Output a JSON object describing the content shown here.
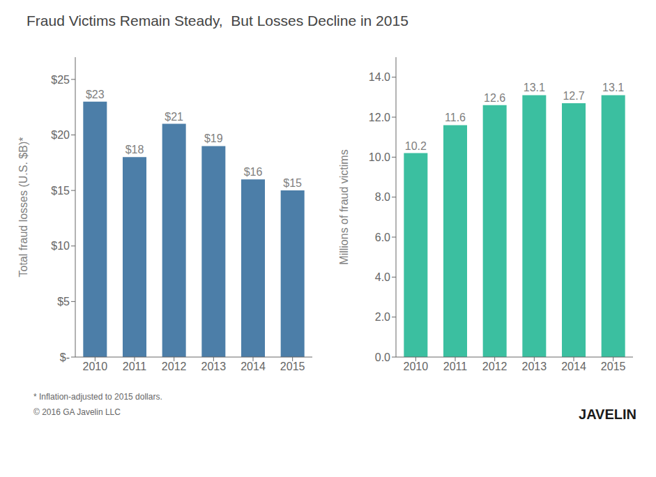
{
  "title": "Fraud Victims Remain Steady,  But Losses Decline in 2015",
  "annotations": [
    "* Inflation-adjusted to 2015 dollars.",
    "© 2016 GA Javelin LLC",
    "JAVELIN"
  ],
  "chart_data": [
    {
      "type": "bar",
      "categories": [
        "2010",
        "2011",
        "2012",
        "2013",
        "2014",
        "2015"
      ],
      "values": [
        23,
        18,
        21,
        19,
        16,
        15
      ],
      "value_labels": [
        "$23",
        "$18",
        "$21",
        "$19",
        "$16",
        "$15"
      ],
      "data_labels": true,
      "color": "#4c7ea8",
      "y_label": "Total fraud losses (U.S. $B)*",
      "ylim": [
        0,
        27
      ],
      "yticks": [
        {
          "value": 0,
          "label": "$-"
        },
        {
          "value": 5,
          "label": "$5"
        },
        {
          "value": 10,
          "label": "$10"
        },
        {
          "value": 15,
          "label": "$15"
        },
        {
          "value": 20,
          "label": "$20"
        },
        {
          "value": 25,
          "label": "$25"
        }
      ],
      "grid": false
    },
    {
      "type": "bar",
      "categories": [
        "2010",
        "2011",
        "2012",
        "2013",
        "2014",
        "2015"
      ],
      "values": [
        10.2,
        11.6,
        12.6,
        13.1,
        12.7,
        13.1
      ],
      "data_labels": true,
      "color": "#3bbfa0",
      "y_label": "Millions of fraud victims",
      "ylim": [
        0,
        15.0
      ],
      "yticks": [
        {
          "value": 0.0,
          "label": "0.0"
        },
        {
          "value": 2.0,
          "label": "2.0"
        },
        {
          "value": 4.0,
          "label": "4.0"
        },
        {
          "value": 6.0,
          "label": "6.0"
        },
        {
          "value": 8.0,
          "label": "8.0"
        },
        {
          "value": 10.0,
          "label": "10.0"
        },
        {
          "value": 12.0,
          "label": "12.0"
        },
        {
          "value": 14.0,
          "label": "14.0"
        }
      ],
      "grid": false
    }
  ]
}
